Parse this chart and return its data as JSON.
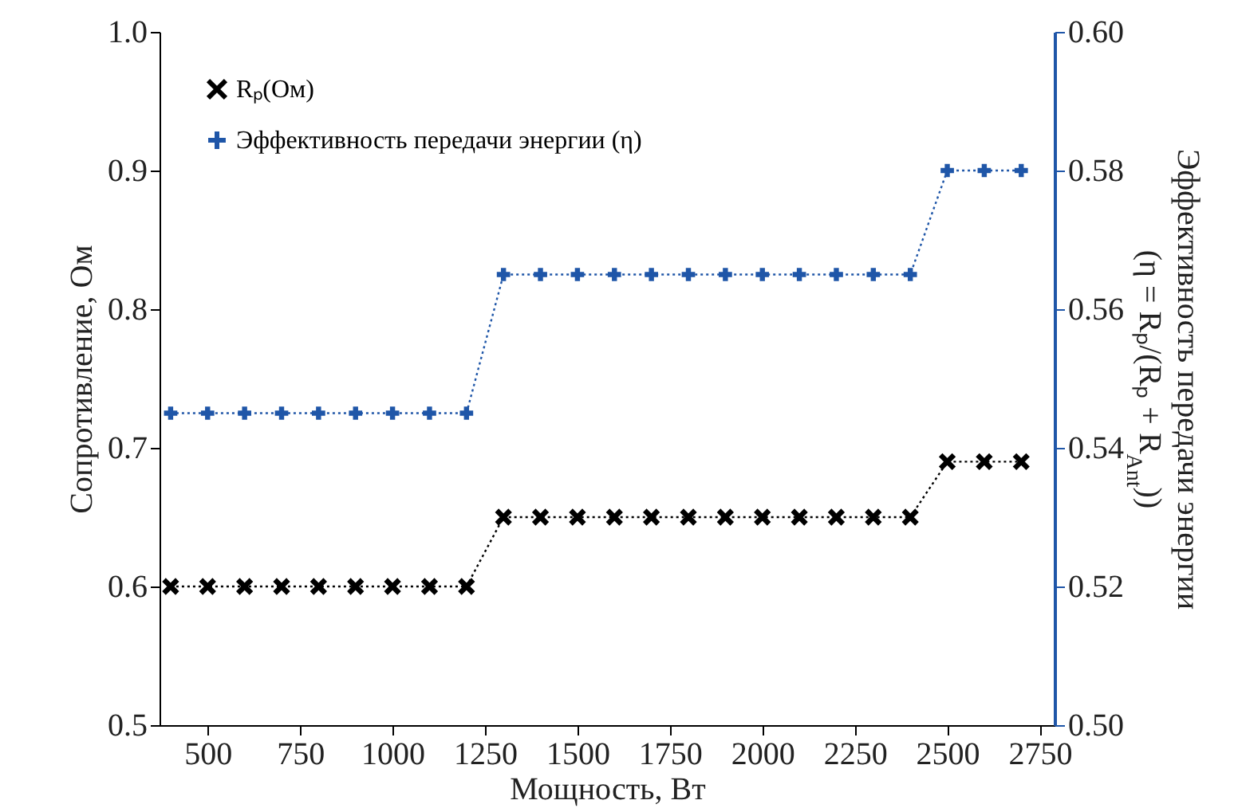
{
  "chart_data": {
    "type": "line",
    "xlabel": "Мощность, Вт",
    "ylabel": "Сопротивление, Ом",
    "y2label": [
      "Эффективность передачи энергии",
      "(η = Rₚ/(Rₚ + R$_{Ant}$))"
    ],
    "x": [
      400,
      500,
      600,
      700,
      800,
      900,
      1000,
      1100,
      1200,
      1300,
      1400,
      1500,
      1600,
      1700,
      1800,
      1900,
      2000,
      2100,
      2200,
      2300,
      2400,
      2500,
      2600,
      2700
    ],
    "series": [
      {
        "name": "Rₚ(Ом)",
        "color": "#000000",
        "marker": "x",
        "values": [
          0.6,
          0.6,
          0.6,
          0.6,
          0.6,
          0.6,
          0.6,
          0.6,
          0.6,
          0.65,
          0.65,
          0.65,
          0.65,
          0.65,
          0.65,
          0.65,
          0.65,
          0.65,
          0.65,
          0.65,
          0.65,
          0.69,
          0.69,
          0.69
        ]
      },
      {
        "name": "Эффективность передачи энергии (η)",
        "color": "#1f56a8",
        "marker": "cross",
        "axis": "y2",
        "values": [
          0.545,
          0.545,
          0.545,
          0.545,
          0.545,
          0.545,
          0.545,
          0.545,
          0.545,
          0.565,
          0.565,
          0.565,
          0.565,
          0.565,
          0.565,
          0.565,
          0.565,
          0.565,
          0.565,
          0.565,
          0.565,
          0.58,
          0.58,
          0.58
        ]
      }
    ],
    "xlim": [
      370,
      2790
    ],
    "xticks": [
      500,
      750,
      1000,
      1250,
      1500,
      1750,
      2000,
      2250,
      2500,
      2750
    ],
    "ylim": [
      0.5,
      1.0
    ],
    "yticks": [
      0.5,
      0.6,
      0.7,
      0.8,
      0.9,
      {
        "value": 1,
        "label": "1.0"
      }
    ],
    "y2lim": [
      0.5,
      0.6
    ],
    "y2ticks": [
      {
        "value": 0.5,
        "label": "0.50"
      },
      0.52,
      0.54,
      0.56,
      0.58,
      {
        "value": 0.6,
        "label": "0.60"
      }
    ],
    "line_style": "dotted",
    "legend": "top left",
    "grid": false
  }
}
